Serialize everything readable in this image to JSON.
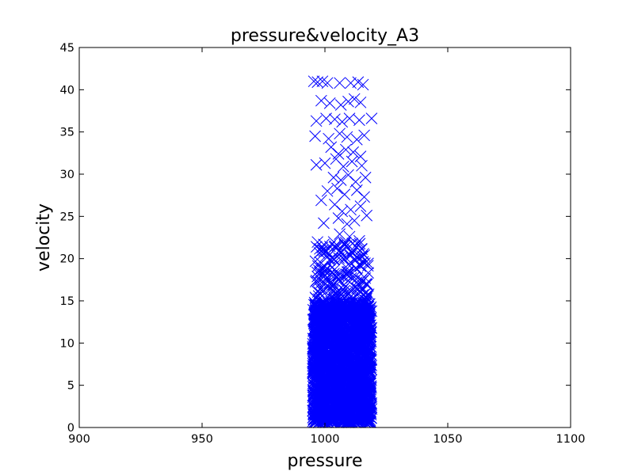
{
  "chart_data": {
    "type": "scatter",
    "title": "pressure&velocity_A3",
    "xlabel": "pressure",
    "ylabel": "velocity",
    "xlim": [
      900,
      1100
    ],
    "ylim": [
      0,
      45
    ],
    "x_ticks": [
      900,
      950,
      1000,
      1050,
      1100
    ],
    "y_ticks": [
      0,
      5,
      10,
      15,
      20,
      25,
      30,
      35,
      40,
      45
    ],
    "marker": "x",
    "color": "#0000ff",
    "grid": false,
    "legend": "none",
    "series": [
      {
        "points": [
          [
            995.5,
            41.0
          ],
          [
            997.0,
            40.9
          ],
          [
            999.0,
            41.0
          ],
          [
            1001.0,
            40.8
          ],
          [
            1006.0,
            40.8
          ],
          [
            1010.5,
            40.8
          ],
          [
            1013.5,
            40.9
          ],
          [
            1015.5,
            40.6
          ],
          [
            998.5,
            38.7
          ],
          [
            1002.0,
            38.4
          ],
          [
            1006.5,
            38.2
          ],
          [
            1009.5,
            38.6
          ],
          [
            1012.0,
            38.9
          ],
          [
            1014.5,
            38.5
          ],
          [
            996.5,
            36.3
          ],
          [
            1000.5,
            36.6
          ],
          [
            1004.0,
            36.5
          ],
          [
            1007.0,
            36.2
          ],
          [
            1010.0,
            36.6
          ],
          [
            1014.0,
            36.4
          ],
          [
            1019.0,
            36.6
          ],
          [
            996.0,
            34.5
          ],
          [
            1001.5,
            34.2
          ],
          [
            1006.0,
            34.8
          ],
          [
            1009.0,
            34.4
          ],
          [
            1013.0,
            34.1
          ],
          [
            1016.0,
            34.6
          ],
          [
            1002.5,
            33.2
          ],
          [
            1005.5,
            32.4
          ],
          [
            1008.5,
            32.9
          ],
          [
            1011.5,
            32.6
          ],
          [
            1014.5,
            32.1
          ],
          [
            1000.0,
            31.3
          ],
          [
            1004.5,
            31.8
          ],
          [
            1007.5,
            30.9
          ],
          [
            1011.0,
            31.5
          ],
          [
            1015.0,
            31.0
          ],
          [
            996.5,
            31.1
          ],
          [
            1003.5,
            29.6
          ],
          [
            1006.5,
            29.3
          ],
          [
            1009.5,
            29.9
          ],
          [
            1012.5,
            29.1
          ],
          [
            1016.5,
            29.6
          ],
          [
            1001.0,
            28.0
          ],
          [
            1005.0,
            28.3
          ],
          [
            1008.0,
            27.6
          ],
          [
            1013.0,
            28.1
          ],
          [
            1016.0,
            27.3
          ],
          [
            998.5,
            26.9
          ],
          [
            1004.0,
            26.4
          ],
          [
            1007.0,
            25.6
          ],
          [
            1010.5,
            25.8
          ],
          [
            1014.5,
            26.2
          ],
          [
            1017.0,
            25.1
          ],
          [
            1005.5,
            24.8
          ],
          [
            1009.0,
            24.1
          ],
          [
            1012.0,
            24.5
          ],
          [
            999.5,
            24.2
          ],
          [
            1006.0,
            22.9
          ],
          [
            1010.0,
            22.6
          ],
          [
            1014.0,
            22.1
          ],
          [
            1008.0,
            21.6
          ],
          [
            1004.5,
            21.2
          ],
          [
            1011.5,
            21.0
          ],
          [
            1016.0,
            20.4
          ],
          [
            1001.0,
            20.2
          ],
          [
            1007.0,
            20.1
          ],
          [
            998.0,
            19.6
          ],
          [
            1003.0,
            19.0
          ],
          [
            1009.5,
            19.3
          ],
          [
            1014.5,
            19.1
          ],
          [
            1000.0,
            18.5
          ],
          [
            1005.5,
            18.0
          ],
          [
            1012.0,
            17.8
          ],
          [
            996.5,
            17.4
          ],
          [
            1002.0,
            17.1
          ],
          [
            1008.0,
            16.6
          ],
          [
            1013.5,
            16.4
          ],
          [
            1017.0,
            16.9
          ],
          [
            999.0,
            16.1
          ],
          [
            1004.5,
            15.8
          ],
          [
            1010.5,
            15.5
          ],
          [
            1015.5,
            15.7
          ],
          [
            997.5,
            15.2
          ],
          [
            1002.5,
            14.9
          ],
          [
            1007.5,
            14.6
          ],
          [
            1012.5,
            14.7
          ],
          [
            1017.5,
            14.3
          ]
        ]
      }
    ]
  }
}
